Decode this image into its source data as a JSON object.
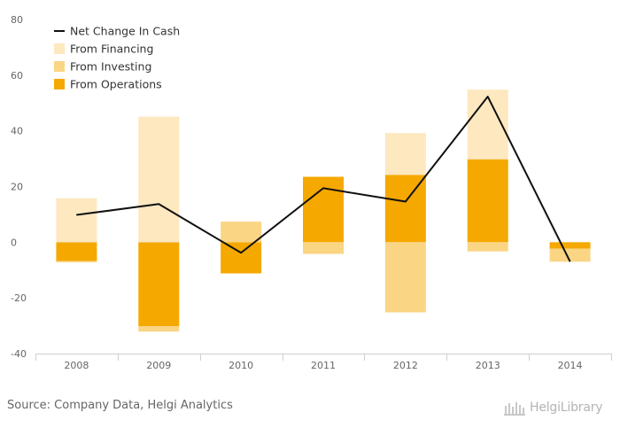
{
  "chart_data": {
    "type": "bar",
    "stacked": true,
    "categories": [
      "2008",
      "2009",
      "2010",
      "2011",
      "2012",
      "2013",
      "2014"
    ],
    "ylim": [
      -40,
      80
    ],
    "yticks": [
      80,
      60,
      40,
      20,
      0,
      -20,
      -40
    ],
    "grid": false,
    "legend_position": "top-left",
    "series": [
      {
        "name": "From Operations",
        "type": "bar",
        "color": "#f5a800",
        "values": [
          -6.8,
          -30.2,
          -11.2,
          23.5,
          24.2,
          29.8,
          -2.3
        ]
      },
      {
        "name": "From Investing",
        "type": "bar",
        "color": "#fad584",
        "values": [
          -0.4,
          -1.9,
          7.4,
          -4.2,
          -25.2,
          -3.3,
          -4.7
        ]
      },
      {
        "name": "From Financing",
        "type": "bar",
        "color": "#fde8c0",
        "values": [
          15.8,
          45.1,
          0,
          0,
          15.0,
          25.0,
          0
        ]
      },
      {
        "name": "Net Change In Cash",
        "type": "line",
        "color": "#111111",
        "values": [
          9.8,
          13.7,
          -3.8,
          19.4,
          14.6,
          52.3,
          -6.9
        ]
      }
    ],
    "legend": [
      "Net Change In Cash",
      "From Financing",
      "From Investing",
      "From Operations"
    ]
  },
  "footer": {
    "source": "Source: Company Data, Helgi Analytics",
    "brand": "HelgiLibrary"
  }
}
